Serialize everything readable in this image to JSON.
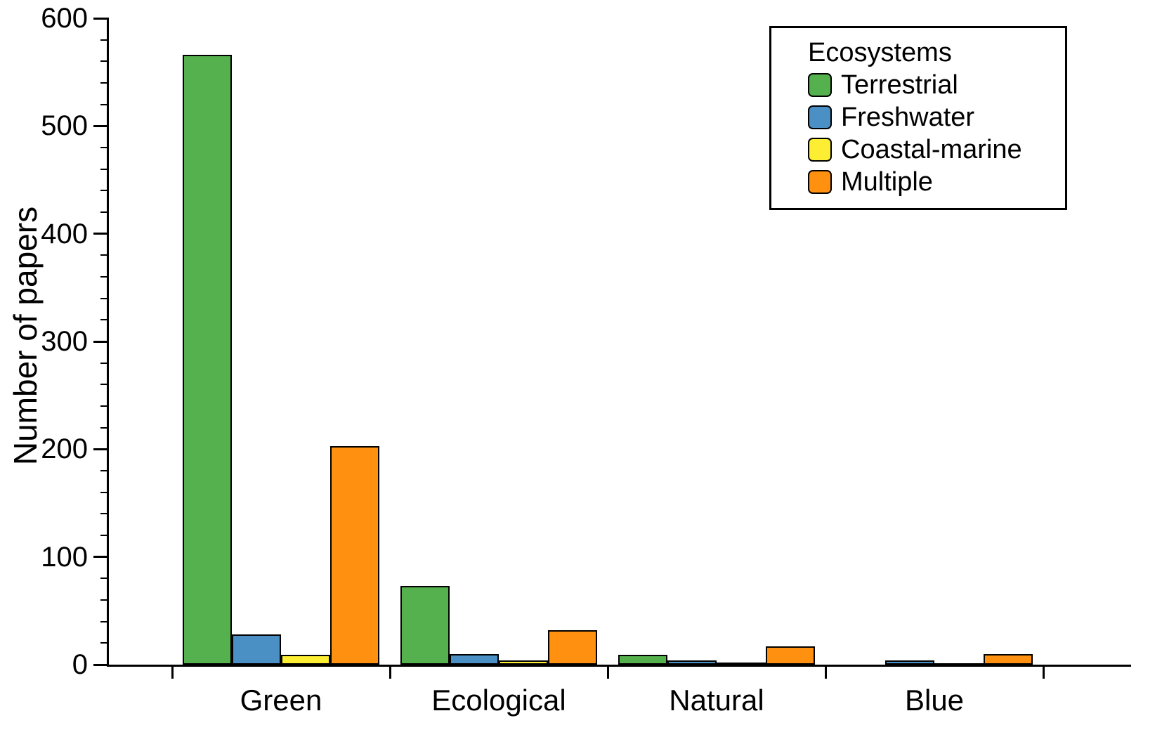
{
  "chart_data": {
    "type": "bar",
    "title": "",
    "xlabel": "",
    "ylabel": "Number of papers",
    "ylim": [
      0,
      600
    ],
    "y_major_ticks": [
      0,
      100,
      200,
      300,
      400,
      500,
      600
    ],
    "y_minor_step": 20,
    "grid": false,
    "categories": [
      "Green",
      "Ecological",
      "Natural",
      "Blue"
    ],
    "legend": {
      "title": "Ecosystems",
      "position": "top-right"
    },
    "series": [
      {
        "name": "Terrestrial",
        "color": "#55b04e",
        "values": [
          566,
          73,
          9,
          0
        ]
      },
      {
        "name": "Freshwater",
        "color": "#4a90c5",
        "values": [
          28,
          10,
          4,
          4
        ]
      },
      {
        "name": "Coastal-marine",
        "color": "#fdee33",
        "values": [
          9,
          4,
          2,
          1
        ]
      },
      {
        "name": "Multiple",
        "color": "#ff9010",
        "values": [
          203,
          32,
          17,
          10
        ]
      }
    ]
  }
}
